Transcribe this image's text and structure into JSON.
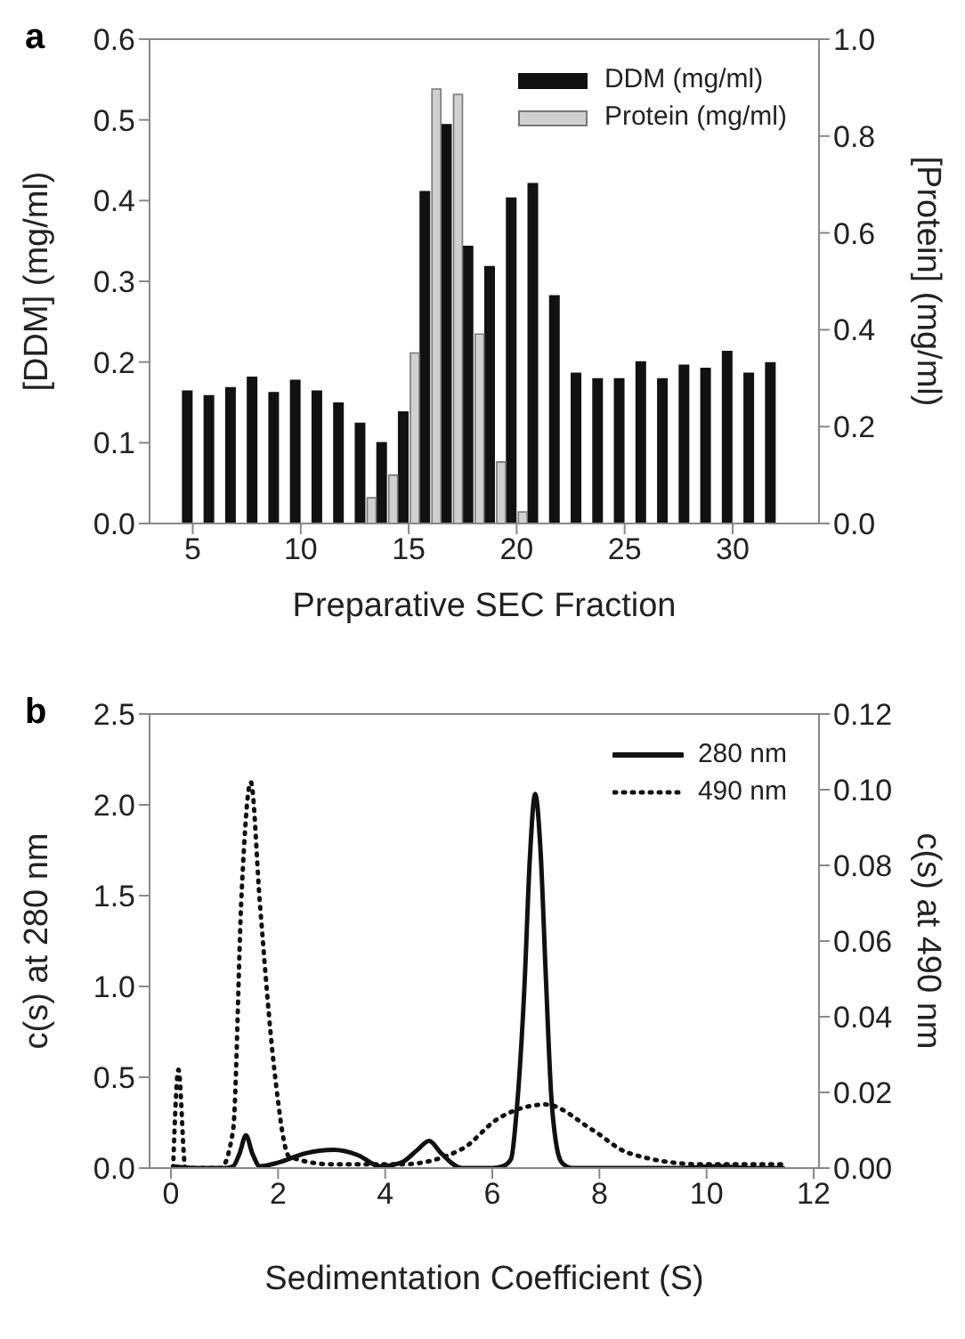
{
  "chart_data": [
    {
      "type": "bar",
      "title": "a",
      "xlabel": "Preparative SEC Fraction",
      "ylabel": "[DDM] (mg/ml)",
      "y2label": "[Protein] (mg/ml)",
      "x": [
        5,
        6,
        7,
        8,
        9,
        10,
        11,
        12,
        13,
        14,
        15,
        16,
        17,
        18,
        19,
        20,
        21,
        22,
        23,
        24,
        25,
        26,
        27,
        28,
        29,
        30,
        31,
        32
      ],
      "series": [
        {
          "name": "DDM (mg/ml)",
          "color": "#111111",
          "values": [
            0.165,
            0.159,
            0.169,
            0.182,
            0.163,
            0.178,
            0.165,
            0.15,
            0.125,
            0.101,
            0.139,
            0.412,
            0.495,
            0.344,
            0.319,
            0.404,
            0.422,
            0.283,
            0.187,
            0.18,
            0.18,
            0.201,
            0.18,
            0.197,
            0.193,
            0.214,
            0.187,
            0.2
          ]
        },
        {
          "name": "Protein (mg/ml)",
          "color": "#d0d0d0",
          "axis": "y2",
          "values": [
            null,
            null,
            null,
            null,
            null,
            null,
            null,
            null,
            0.053,
            0.1,
            0.352,
            0.897,
            0.886,
            0.391,
            0.127,
            0.024,
            null,
            null,
            null,
            null,
            null,
            null,
            null,
            null,
            null,
            null,
            null,
            null
          ]
        }
      ],
      "xlim": [
        3,
        34
      ],
      "xticks": [
        5,
        10,
        15,
        20,
        25,
        30
      ],
      "ylim": [
        0,
        0.6
      ],
      "yticks": [
        {
          "value": 0,
          "label": "0.0"
        },
        0.1,
        0.2,
        0.3,
        0.4,
        0.5,
        0.6
      ],
      "y2lim": [
        0,
        1
      ],
      "y2ticks": [
        {
          "value": 0,
          "label": "0.0"
        },
        0.2,
        0.4,
        0.6,
        0.8,
        {
          "value": 1,
          "label": "1.0"
        }
      ],
      "grid": false,
      "legend": "top right"
    },
    {
      "type": "line",
      "title": "b",
      "xlabel": "Sedimentation Coefficient (S)",
      "ylabel": "c(s) at 280 nm",
      "y2label": "c(s) at 490 nm",
      "series": [
        {
          "name": "280 nm",
          "color": "#111111",
          "line_style": "solid",
          "x": [
            0.04,
            0.5,
            1.0,
            1.16,
            1.28,
            1.4,
            1.52,
            1.66,
            2.0,
            2.5,
            3.04,
            3.5,
            3.9,
            4.3,
            4.6,
            4.82,
            5.05,
            5.43,
            6.0,
            6.2,
            6.35,
            6.45,
            6.6,
            6.7,
            6.8,
            6.9,
            7.0,
            7.1,
            7.2,
            7.3,
            7.5,
            8.5,
            9.5,
            10.2,
            10.8,
            11.43
          ],
          "values": [
            0.01,
            0.0,
            0.0,
            0.01,
            0.08,
            0.18,
            0.08,
            0.01,
            0.03,
            0.08,
            0.1,
            0.07,
            0.01,
            0.03,
            0.1,
            0.15,
            0.08,
            0.0,
            0.0,
            0.01,
            0.05,
            0.3,
            1.0,
            1.7,
            2.06,
            1.75,
            1.05,
            0.4,
            0.12,
            0.03,
            0.0,
            0.0,
            0.0,
            0.01,
            0.0,
            0.0
          ]
        },
        {
          "name": "490 nm",
          "color": "#111111",
          "axis": "y2",
          "line_style": "dotted",
          "x": [
            0.04,
            0.14,
            0.27,
            0.93,
            1.16,
            1.32,
            1.49,
            1.66,
            1.93,
            2.21,
            3.0,
            4.32,
            5.43,
            6.1,
            6.99,
            7.88,
            8.54,
            9.88,
            11.43
          ],
          "values": [
            0.0,
            0.026,
            0.0,
            0.0,
            0.01,
            0.073,
            0.102,
            0.07,
            0.026,
            0.003,
            0.001,
            0.001,
            0.005,
            0.013,
            0.0168,
            0.01,
            0.004,
            0.001,
            0.001
          ]
        }
      ],
      "xlim": [
        -0.4,
        12.1
      ],
      "xticks": [
        0,
        2,
        4,
        6,
        8,
        10,
        12
      ],
      "ylim": [
        0,
        2.5
      ],
      "yticks": [
        {
          "value": 0,
          "label": "0.0"
        },
        0.5,
        {
          "value": 1,
          "label": "1.0"
        },
        1.5,
        {
          "value": 2,
          "label": "2.0"
        },
        2.5
      ],
      "y2lim": [
        0,
        0.12
      ],
      "y2ticks": [
        {
          "value": 0,
          "label": "0.00"
        },
        {
          "value": 0.02,
          "label": "0.02"
        },
        {
          "value": 0.04,
          "label": "0.04"
        },
        {
          "value": 0.06,
          "label": "0.06"
        },
        {
          "value": 0.08,
          "label": "0.08"
        },
        {
          "value": 0.1,
          "label": "0.10"
        },
        {
          "value": 0.12,
          "label": "0.12"
        }
      ],
      "grid": false,
      "legend": "top right",
      "marker": "none"
    }
  ]
}
